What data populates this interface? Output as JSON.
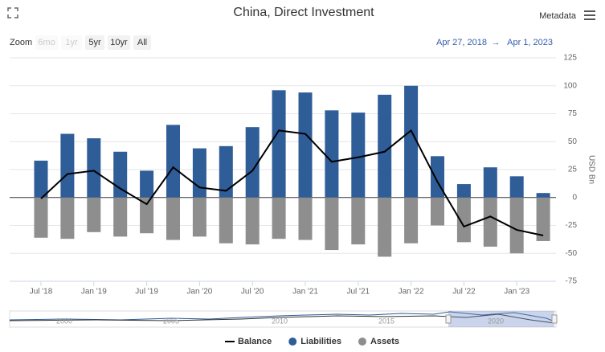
{
  "title": "China, Direct Investment",
  "metadata_button": "Metadata",
  "zoom": {
    "label": "Zoom",
    "buttons": [
      "6mo",
      "1yr",
      "5yr",
      "10yr",
      "All"
    ],
    "disabled": [
      "6mo",
      "1yr"
    ]
  },
  "date_range": {
    "from": "Apr 27, 2018",
    "separator": "→",
    "to": "Apr 1, 2023"
  },
  "chart_data": {
    "type": "bar",
    "categories": [
      "Jul '18",
      null,
      "Jan '19",
      null,
      "Jul '19",
      null,
      "Jan '20",
      null,
      "Jul '20",
      null,
      "Jan '21",
      null,
      "Jul '21",
      null,
      "Jan '22",
      null,
      "Jul '22",
      null,
      "Jan '23",
      null
    ],
    "series": [
      {
        "name": "Balance",
        "type": "line",
        "color": "#000000",
        "values": [
          -1,
          21,
          24,
          8,
          -6,
          27,
          9,
          6,
          24,
          60,
          57,
          32,
          36,
          41,
          60,
          14,
          -26,
          -17,
          -29,
          -34
        ]
      },
      {
        "name": "Liabilities",
        "type": "bar",
        "color": "#2f5d98",
        "values": [
          33,
          57,
          53,
          41,
          24,
          65,
          44,
          46,
          63,
          96,
          94,
          78,
          76,
          92,
          100,
          37,
          12,
          27,
          19,
          4
        ]
      },
      {
        "name": "Assets",
        "type": "bar",
        "color": "#8e8e8e",
        "values": [
          -36,
          -37,
          -31,
          -35,
          -32,
          -38,
          -35,
          -41,
          -42,
          -37,
          -38,
          -47,
          -42,
          -53,
          -41,
          -25,
          -40,
          -44,
          -50,
          -39
        ]
      }
    ],
    "ylim": [
      -75,
      125
    ],
    "yticks": [
      -75,
      -50,
      -25,
      0,
      25,
      50,
      75,
      100,
      125
    ],
    "y_label": "USD Bn",
    "y_axis_side": "right",
    "grid": true
  },
  "navigator": {
    "labels": [
      "2000",
      "2005",
      "2010",
      "2015",
      "2020"
    ]
  }
}
